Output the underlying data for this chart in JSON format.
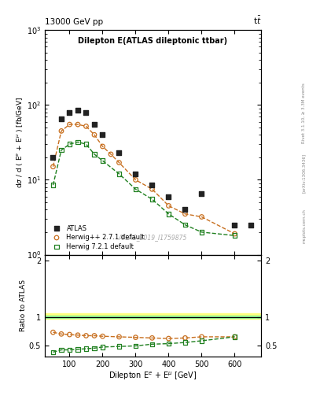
{
  "title_left": "13000 GeV pp",
  "title_right": "t$\\bar{t}$",
  "plot_title": "Dilepton E(ATLAS dileptonic ttbar)",
  "xlabel": "Dilepton E$^{e}$ + E$^{\\mu}$ [GeV]",
  "ylabel": "d$\\sigma$ / d ( E$^{e}$ + E$^{\\mu}$ ) [fb/GeV]",
  "ylabel_ratio": "Ratio to ATLAS",
  "watermark": "ATLAS_2019_I1759875",
  "right_label1": "Rivet 3.1.10, ≥ 3.3M events",
  "right_label2": "[arXiv:1306.3436]",
  "right_label3": "mcplots.cern.ch",
  "atlas_x": [
    50,
    75,
    100,
    125,
    150,
    175,
    200,
    250,
    300,
    350,
    400,
    450,
    500,
    600,
    650
  ],
  "atlas_y": [
    20,
    65,
    80,
    85,
    80,
    55,
    40,
    23,
    12,
    8.5,
    6.0,
    4.0,
    6.5,
    2.5,
    2.5
  ],
  "herwig_pp_x": [
    50,
    75,
    100,
    125,
    150,
    175,
    200,
    225,
    250,
    300,
    350,
    400,
    450,
    500,
    600
  ],
  "herwig_pp_y": [
    15,
    45,
    55,
    55,
    52,
    40,
    28,
    22,
    17,
    10,
    7.5,
    4.5,
    3.5,
    3.2,
    1.9
  ],
  "herwig72_x": [
    50,
    75,
    100,
    125,
    150,
    175,
    200,
    250,
    300,
    350,
    400,
    450,
    500,
    600
  ],
  "herwig72_y": [
    8.5,
    25,
    30,
    32,
    30,
    22,
    18,
    12,
    7.5,
    5.5,
    3.5,
    2.5,
    2.0,
    1.8
  ],
  "ratio_herwig_pp_x": [
    50,
    75,
    100,
    125,
    150,
    175,
    200,
    250,
    300,
    350,
    400,
    450,
    500,
    600
  ],
  "ratio_herwig_pp_y": [
    0.73,
    0.7,
    0.69,
    0.68,
    0.67,
    0.67,
    0.66,
    0.65,
    0.64,
    0.63,
    0.62,
    0.63,
    0.65,
    0.65
  ],
  "ratio_herwig72_x": [
    50,
    75,
    100,
    125,
    150,
    175,
    200,
    250,
    300,
    350,
    400,
    450,
    500,
    600
  ],
  "ratio_herwig72_y": [
    0.38,
    0.42,
    0.42,
    0.43,
    0.44,
    0.45,
    0.47,
    0.48,
    0.49,
    0.52,
    0.53,
    0.55,
    0.58,
    0.65
  ],
  "atlas_color": "#222222",
  "herwig_pp_color": "#c87020",
  "herwig72_color": "#208020",
  "band_inner_color": "#90ee90",
  "band_outer_color": "#ffff80",
  "xlim": [
    25,
    680
  ],
  "ylim_main": [
    1.0,
    1000
  ],
  "band_outer_lo": 0.97,
  "band_outer_hi": 1.07,
  "band_inner_lo": 0.985,
  "band_inner_hi": 1.02
}
